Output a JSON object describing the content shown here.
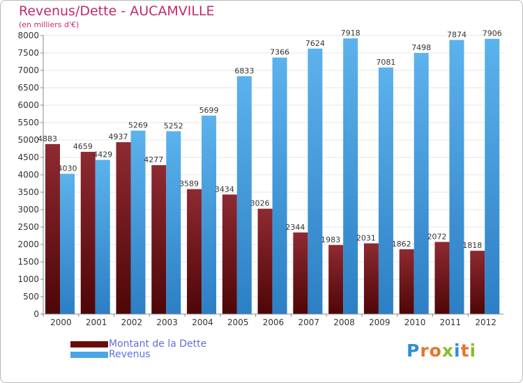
{
  "header": {
    "title": "Revenus/Dette - AUCAMVILLE",
    "subtitle": "(en milliers d'€)"
  },
  "logo": {
    "text": "Proxiti",
    "letters": [
      "P",
      "r",
      "o",
      "x",
      "i",
      "t",
      "i"
    ],
    "colors": [
      "#2f8fd6",
      "#e8742a",
      "#e8742a",
      "#8cbc2c",
      "#2f8fd6",
      "#e8742a",
      "#8cbc2c"
    ]
  },
  "chart_data": {
    "type": "bar",
    "title": "Revenus/Dette - AUCAMVILLE",
    "subtitle": "(en milliers d'€)",
    "categories": [
      "2000",
      "2001",
      "2002",
      "2003",
      "2004",
      "2005",
      "2006",
      "2007",
      "2008",
      "2009",
      "2010",
      "2011",
      "2012"
    ],
    "series": [
      {
        "name": "Montant de la Dette",
        "color": "#7a1010",
        "values": [
          4883,
          4659,
          4937,
          4277,
          3589,
          3434,
          3026,
          2344,
          1983,
          2031,
          1862,
          2072,
          1818
        ],
        "labels": [
          "4883",
          "4659",
          "4937",
          "4277",
          "3589",
          "3434",
          "3026",
          "2344",
          "1983",
          "2031",
          "1862",
          "2072",
          "1818"
        ]
      },
      {
        "name": "Revenus",
        "color": "#4aa6e6",
        "values": [
          4030,
          4429,
          5269,
          5252,
          5699,
          6833,
          7366,
          7624,
          7918,
          7081,
          7498,
          7874,
          7906
        ],
        "labels": [
          "4030",
          "4429",
          "5269",
          "5252",
          "5699",
          "6833",
          "7366",
          "7624",
          "7918",
          "7081",
          "7498",
          "7874",
          "7906"
        ]
      }
    ],
    "ylim": [
      0,
      8000
    ],
    "yticks": [
      "0",
      "500",
      "1000",
      "1500",
      "2000",
      "2500",
      "3000",
      "3500",
      "4000",
      "4500",
      "5000",
      "5500",
      "6000",
      "6500",
      "7000",
      "7500",
      "8000"
    ],
    "grid": true,
    "legend_position": "bottom-left"
  }
}
